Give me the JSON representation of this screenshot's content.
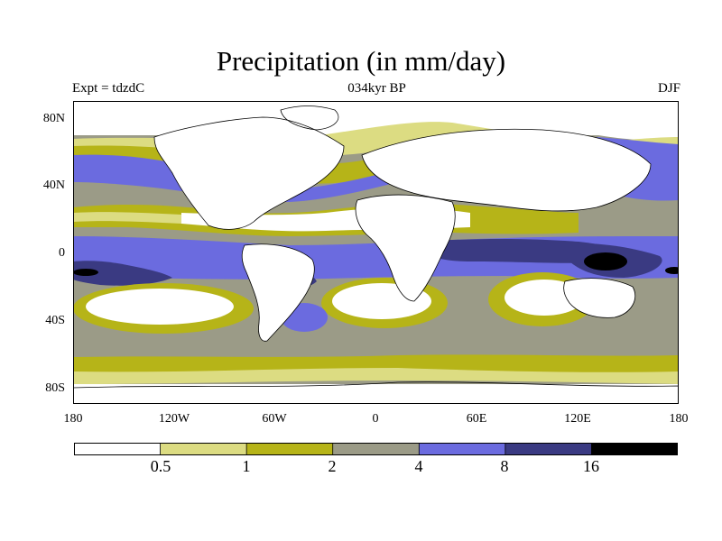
{
  "header": {
    "title": "Precipitation (in mm/day)",
    "experiment": "Expt = tdzdC",
    "period": "034kyr BP",
    "season": "DJF"
  },
  "axes": {
    "y_ticks": [
      "80N",
      "40N",
      "0",
      "40S",
      "80S"
    ],
    "x_ticks": [
      "180",
      "120W",
      "60W",
      "0",
      "60E",
      "120E",
      "180"
    ]
  },
  "colorbar": {
    "labels": [
      "0.5",
      "1",
      "2",
      "4",
      "8",
      "16"
    ],
    "colors": [
      "#ffffff",
      "#dcdc82",
      "#b6b418",
      "#9b9b87",
      "#6b6bdf",
      "#3a3a82",
      "#000000"
    ]
  }
}
